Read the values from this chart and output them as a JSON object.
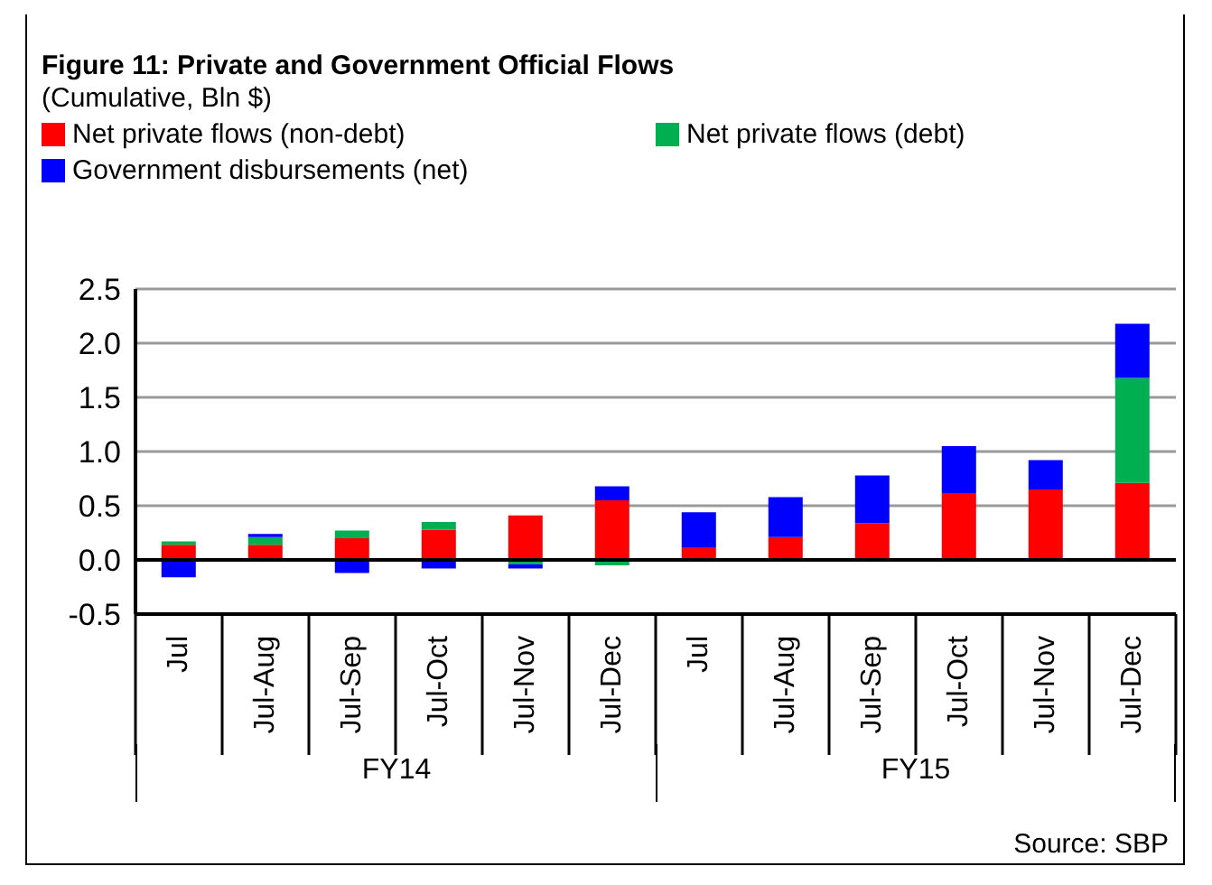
{
  "chart_data": {
    "type": "bar",
    "title": "Figure 11: Private and Government Official Flows",
    "subtitle": "(Cumulative,  Bln $)",
    "categories": [
      "Jul",
      "Jul-Aug",
      "Jul-Sep",
      "Jul-Oct",
      "Jul-Nov",
      "Jul-Dec",
      "Jul",
      "Jul-Aug",
      "Jul-Sep",
      "Jul-Oct",
      "Jul-Nov",
      "Jul-Dec"
    ],
    "stacked": true,
    "series": [
      {
        "name": "Net private flows (non-debt)",
        "color": "#ff0000",
        "values": [
          0.14,
          0.14,
          0.2,
          0.28,
          0.41,
          0.55,
          0.11,
          0.21,
          0.34,
          0.61,
          0.65,
          0.71
        ]
      },
      {
        "name": "Net private flows (debt)",
        "color": "#00b050",
        "values": [
          0.03,
          0.07,
          0.07,
          0.07,
          -0.04,
          -0.05,
          0,
          0,
          0,
          0,
          0,
          0.97
        ]
      },
      {
        "name": "Government disbursements (net)",
        "color": "#0000ff",
        "values": [
          -0.16,
          0.03,
          -0.12,
          -0.08,
          -0.04,
          0.13,
          0.33,
          0.37,
          0.44,
          0.44,
          0.27,
          0.5
        ]
      }
    ],
    "ylim": [
      -0.5,
      2.5
    ],
    "yticks": [
      {
        "value": -0.5,
        "label": "-0.5"
      },
      {
        "value": 0,
        "label": "0.0"
      },
      {
        "value": 0.5,
        "label": "0.5"
      },
      {
        "value": 1,
        "label": "1.0"
      },
      {
        "value": 1.5,
        "label": "1.5"
      },
      {
        "value": 2,
        "label": "2.0"
      },
      {
        "value": 2.5,
        "label": "2.5"
      }
    ],
    "grid": "y",
    "legend": "top",
    "annotations": [
      "FY14",
      "FY15",
      "Source: SBP"
    ]
  }
}
